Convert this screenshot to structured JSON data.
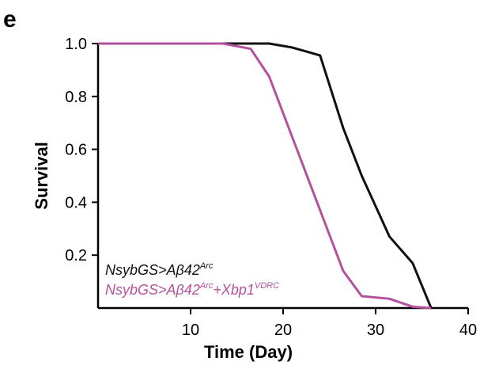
{
  "panel_label": "e",
  "colors": {
    "control": "#111111",
    "treatment": "#b5509e"
  },
  "chart_data": {
    "type": "line",
    "xlabel": "Time (Day)",
    "ylabel": "Survival",
    "xlim": [
      0,
      40
    ],
    "ylim": [
      0,
      1.0
    ],
    "x_ticks": [
      10,
      20,
      30,
      40
    ],
    "y_ticks": [
      0.2,
      0.4,
      0.6,
      0.8,
      1.0
    ],
    "x_tick_labels": [
      "10",
      "20",
      "30",
      "40"
    ],
    "y_tick_labels": [
      "0.2",
      "0.4",
      "0.6",
      "0.8",
      "1.0"
    ],
    "grid": false,
    "legend_position": "bottom-left",
    "series": [
      {
        "name": "NsybGS>Aβ42Arc",
        "legend": {
          "base": "NsybGS>Aβ42",
          "sup1": "Arc",
          "mid": "",
          "sup2": ""
        },
        "color": "#111111",
        "x": [
          0,
          13.5,
          18.5,
          21,
          24,
          26.5,
          28.5,
          31.5,
          34,
          36
        ],
        "y": [
          1.0,
          1.0,
          1.0,
          0.985,
          0.955,
          0.68,
          0.5,
          0.27,
          0.17,
          0.0
        ]
      },
      {
        "name": "NsybGS>Aβ42Arc+Xbp1VDRC",
        "legend": {
          "base": "NsybGS>Aβ42",
          "sup1": "Arc",
          "mid": "+Xbp1",
          "sup2": "VDRC"
        },
        "color": "#b5509e",
        "x": [
          0,
          13.5,
          16.5,
          18.5,
          26.5,
          28.5,
          31.5,
          34,
          36
        ],
        "y": [
          1.0,
          1.0,
          0.98,
          0.875,
          0.14,
          0.045,
          0.035,
          0.005,
          0.0
        ]
      }
    ]
  }
}
